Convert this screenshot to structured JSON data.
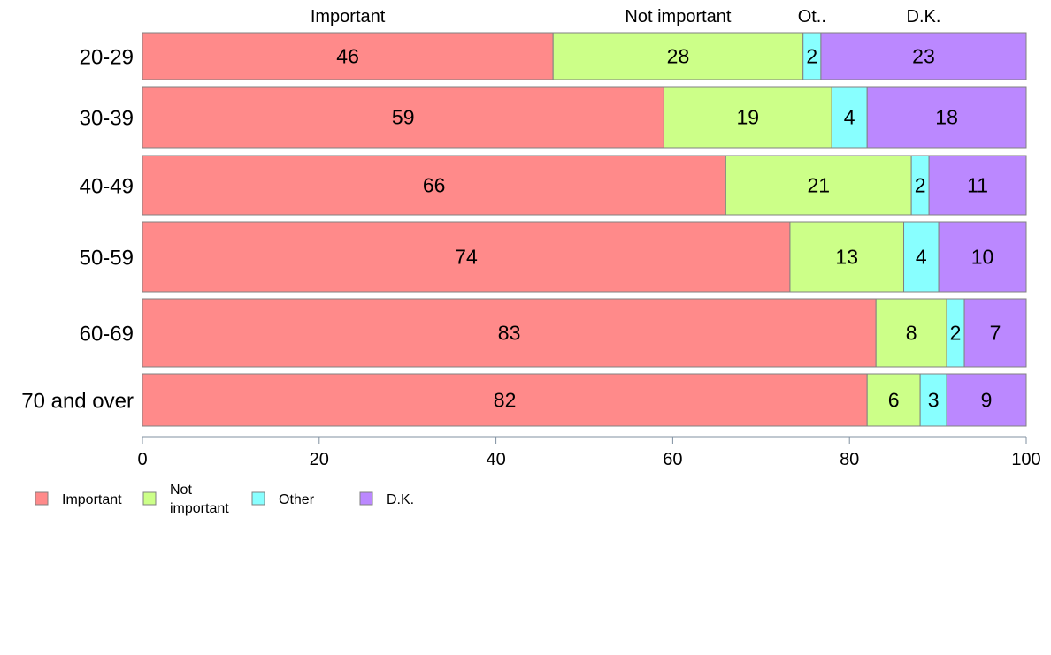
{
  "chart_data": {
    "type": "bar",
    "orientation": "horizontal",
    "stacked": true,
    "categories": [
      "20-29",
      "30-39",
      "40-49",
      "50-59",
      "60-69",
      "70 and over"
    ],
    "series": [
      {
        "name": "Important",
        "top_label": "Important",
        "color": "#FF8A8A",
        "values": [
          46,
          59,
          66,
          74,
          83,
          82
        ]
      },
      {
        "name": "Not important",
        "top_label": "Not important",
        "color": "#CCFF88",
        "values": [
          28,
          19,
          21,
          13,
          8,
          6
        ]
      },
      {
        "name": "Other",
        "top_label": "Ot..",
        "color": "#88FFFF",
        "values": [
          2,
          4,
          2,
          4,
          2,
          3
        ]
      },
      {
        "name": "D.K.",
        "top_label": "D.K.",
        "color": "#BB88FF",
        "values": [
          23,
          18,
          11,
          10,
          7,
          9
        ]
      }
    ],
    "legend": {
      "position": "bottom-left",
      "items": [
        {
          "lines": [
            "Important"
          ],
          "color": "#FF8A8A"
        },
        {
          "lines": [
            "Not",
            "important"
          ],
          "color": "#CCFF88"
        },
        {
          "lines": [
            "Other"
          ],
          "color": "#88FFFF"
        },
        {
          "lines": [
            "D.K."
          ],
          "color": "#BB88FF"
        }
      ]
    },
    "xlim": [
      0,
      100
    ],
    "xticks": [
      "0",
      "20",
      "40",
      "60",
      "80",
      "100"
    ],
    "grid": false,
    "title": "",
    "xlabel": "",
    "ylabel": ""
  }
}
